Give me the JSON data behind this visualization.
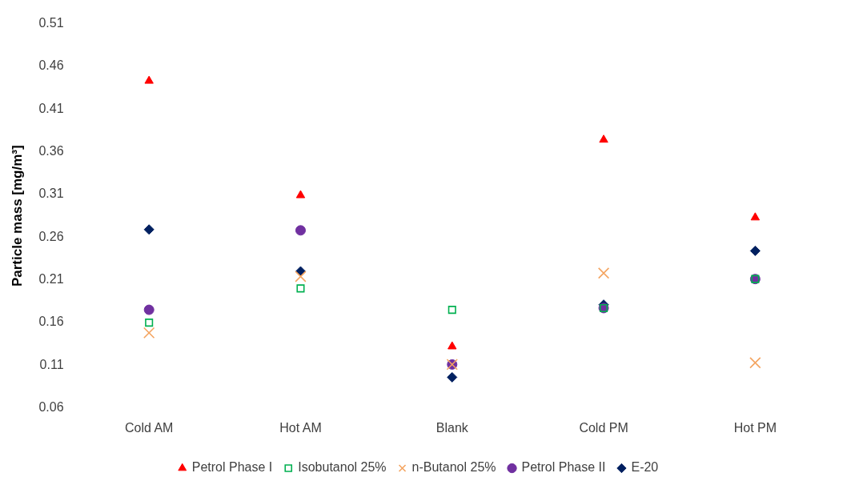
{
  "chart_data": {
    "type": "scatter",
    "ylabel": "Particle mass [mg/m³]",
    "categories": [
      "Cold AM",
      "Hot AM",
      "Blank",
      "Cold PM",
      "Hot PM"
    ],
    "ylim": [
      0.06,
      0.51
    ],
    "yticks": [
      0.06,
      0.11,
      0.16,
      0.21,
      0.26,
      0.31,
      0.36,
      0.41,
      0.46,
      0.51
    ],
    "grid": false,
    "legend": "bottom",
    "series": [
      {
        "name": "Petrol Phase I",
        "color": "#ff0000",
        "marker": "triangle",
        "values": [
          0.443,
          0.309,
          0.132,
          0.374,
          0.283
        ]
      },
      {
        "name": "Isobutanol 25%",
        "color": "#00b050",
        "marker": "square",
        "values": [
          0.16,
          0.2,
          0.175,
          0.177,
          0.211
        ]
      },
      {
        "name": "n-Butanol 25%",
        "color": "#f4a460",
        "marker": "cross",
        "values": [
          0.148,
          0.214,
          0.111,
          0.218,
          0.113
        ]
      },
      {
        "name": "Petrol Phase II",
        "color": "#7030a0",
        "marker": "circle",
        "values": [
          0.175,
          0.268,
          0.111,
          0.177,
          0.211
        ]
      },
      {
        "name": "E-20",
        "color": "#002060",
        "marker": "diamond",
        "values": [
          0.269,
          0.22,
          0.096,
          0.181,
          0.244
        ]
      }
    ]
  }
}
